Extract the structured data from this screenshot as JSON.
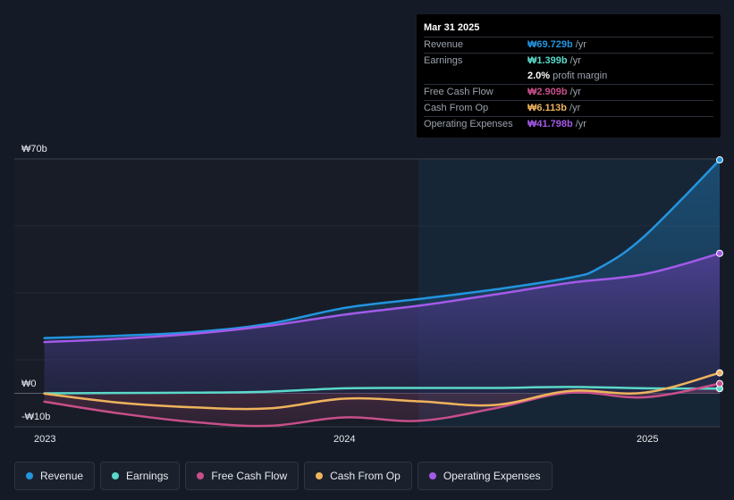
{
  "tooltip": {
    "date": "Mar 31 2025",
    "rows": [
      {
        "label": "Revenue",
        "value": "₩69.729b",
        "suffix": "/yr",
        "color": "#2394df"
      },
      {
        "label": "Earnings",
        "value": "₩1.399b",
        "suffix": "/yr",
        "color": "#5ad8c9"
      },
      {
        "label": "",
        "value": "2.0%",
        "suffix": "profit margin",
        "color": "#ffffff"
      },
      {
        "label": "Free Cash Flow",
        "value": "₩2.909b",
        "suffix": "/yr",
        "color": "#c74f8a"
      },
      {
        "label": "Cash From Op",
        "value": "₩6.113b",
        "suffix": "/yr",
        "color": "#eeb35c"
      },
      {
        "label": "Operating Expenses",
        "value": "₩41.798b",
        "suffix": "/yr",
        "color": "#a35ae8"
      }
    ]
  },
  "legend": [
    {
      "label": "Revenue",
      "color": "#2394df"
    },
    {
      "label": "Earnings",
      "color": "#5ad8c9"
    },
    {
      "label": "Free Cash Flow",
      "color": "#c74f8a"
    },
    {
      "label": "Cash From Op",
      "color": "#eeb35c"
    },
    {
      "label": "Operating Expenses",
      "color": "#a35ae8"
    }
  ],
  "chart_data": {
    "type": "area",
    "currency": "₩",
    "y_labels": [
      "₩70b",
      "₩0",
      "-₩10b"
    ],
    "ylim": [
      -10,
      70
    ],
    "x_ticks": [
      {
        "label": "2023",
        "x": 2023.0
      },
      {
        "label": "2024",
        "x": 2024.0
      },
      {
        "label": "2025",
        "x": 2025.0
      }
    ],
    "xlim": [
      2022.9,
      2025.25
    ],
    "forecast_start": 2024.25,
    "series": [
      {
        "name": "Revenue",
        "color": "#2394df",
        "filled": true,
        "points": [
          [
            2023.0,
            16.5
          ],
          [
            2023.25,
            17.2
          ],
          [
            2023.5,
            18.3
          ],
          [
            2023.75,
            20.8
          ],
          [
            2024.0,
            25.5
          ],
          [
            2024.25,
            28.2
          ],
          [
            2024.5,
            31.0
          ],
          [
            2024.75,
            34.5
          ],
          [
            2024.85,
            37.5
          ],
          [
            2025.0,
            47.0
          ],
          [
            2025.25,
            69.729
          ]
        ]
      },
      {
        "name": "Operating Expenses",
        "color": "#a35ae8",
        "filled": true,
        "points": [
          [
            2023.0,
            15.3
          ],
          [
            2023.25,
            16.3
          ],
          [
            2023.5,
            17.8
          ],
          [
            2023.75,
            20.2
          ],
          [
            2024.0,
            23.5
          ],
          [
            2024.25,
            26.2
          ],
          [
            2024.5,
            29.5
          ],
          [
            2024.75,
            33.0
          ],
          [
            2025.0,
            35.6
          ],
          [
            2025.25,
            41.798
          ]
        ]
      },
      {
        "name": "Earnings",
        "color": "#5ad8c9",
        "filled": false,
        "points": [
          [
            2023.0,
            0.0
          ],
          [
            2023.25,
            0.1
          ],
          [
            2023.5,
            0.2
          ],
          [
            2023.75,
            0.5
          ],
          [
            2024.0,
            1.5
          ],
          [
            2024.25,
            1.6
          ],
          [
            2024.5,
            1.6
          ],
          [
            2024.75,
            1.9
          ],
          [
            2025.0,
            1.5
          ],
          [
            2025.25,
            1.399
          ]
        ]
      },
      {
        "name": "Free Cash Flow",
        "color": "#c74f8a",
        "filled": true,
        "points": [
          [
            2023.0,
            -2.5
          ],
          [
            2023.25,
            -6.0
          ],
          [
            2023.5,
            -8.6
          ],
          [
            2023.75,
            -9.7
          ],
          [
            2024.0,
            -7.2
          ],
          [
            2024.25,
            -8.2
          ],
          [
            2024.5,
            -4.5
          ],
          [
            2024.75,
            0.2
          ],
          [
            2025.0,
            -1.2
          ],
          [
            2025.25,
            2.909
          ]
        ]
      },
      {
        "name": "Cash From Op",
        "color": "#eeb35c",
        "filled": false,
        "points": [
          [
            2023.0,
            -0.1
          ],
          [
            2023.25,
            -2.8
          ],
          [
            2023.5,
            -4.2
          ],
          [
            2023.75,
            -4.5
          ],
          [
            2024.0,
            -1.6
          ],
          [
            2024.25,
            -2.4
          ],
          [
            2024.5,
            -3.5
          ],
          [
            2024.75,
            0.7
          ],
          [
            2025.0,
            0.2
          ],
          [
            2025.25,
            6.113
          ]
        ]
      }
    ],
    "grid": true,
    "legend_position": "bottom"
  }
}
